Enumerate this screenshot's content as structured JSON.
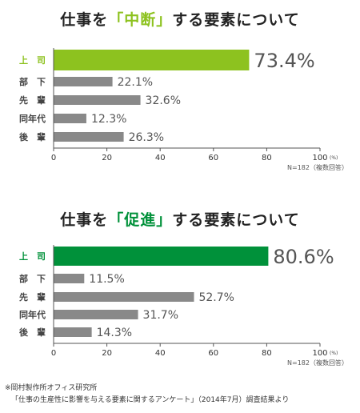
{
  "chart_data": [
    {
      "type": "bar",
      "orientation": "horizontal",
      "title_parts": [
        "仕事を",
        "「中断」",
        "する要素について"
      ],
      "categories": [
        "上　司",
        "部　下",
        "先　輩",
        "同年代",
        "後　輩"
      ],
      "values": [
        73.4,
        22.1,
        32.6,
        12.3,
        26.3
      ],
      "value_labels": [
        "73.4%",
        "22.1%",
        "32.6%",
        "12.3%",
        "26.3%"
      ],
      "xlim": [
        0,
        100
      ],
      "xticks": [
        "0",
        "20",
        "40",
        "60",
        "80",
        "100"
      ],
      "unit": "(%)",
      "note": "N=182（複数回答）",
      "highlight_color": "#8dc21f",
      "bar_color": "#898989",
      "grid": false
    },
    {
      "type": "bar",
      "orientation": "horizontal",
      "title_parts": [
        "仕事を",
        "「促進」",
        "する要素について"
      ],
      "categories": [
        "上　司",
        "部　下",
        "先　輩",
        "同年代",
        "後　輩"
      ],
      "values": [
        80.6,
        11.5,
        52.7,
        31.7,
        14.3
      ],
      "value_labels": [
        "80.6%",
        "11.5%",
        "52.7%",
        "31.7%",
        "14.3%"
      ],
      "xlim": [
        0,
        100
      ],
      "xticks": [
        "0",
        "20",
        "40",
        "60",
        "80",
        "100"
      ],
      "unit": "(%)",
      "note": "N=182（複数回答）",
      "highlight_color": "#00913a",
      "bar_color": "#898989",
      "grid": false
    }
  ],
  "footer": {
    "line1": "※岡村製作所オフィス研究所",
    "line2": "「仕事の生産性に影響を与える要素に関するアンケート」（2014年7月）調査結果より"
  }
}
